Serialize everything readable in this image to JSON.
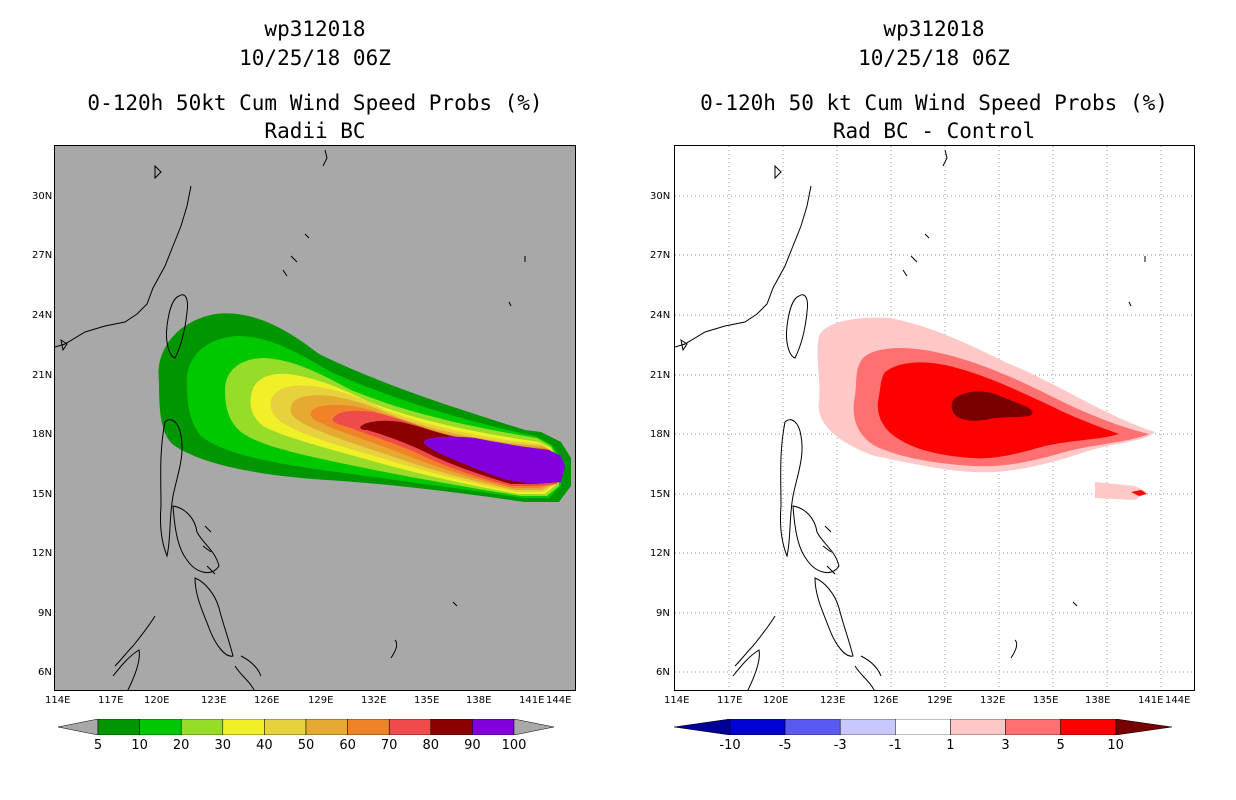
{
  "left": {
    "storm_id": "wp312018",
    "datetime": "10/25/18 06Z",
    "product": "0-120h 50kt Cum Wind Speed Probs (%)",
    "subtitle": "Radii BC",
    "background": "#a8a8a8",
    "colorbar": {
      "labels": [
        "5",
        "10",
        "20",
        "30",
        "40",
        "50",
        "60",
        "70",
        "80",
        "90",
        "100"
      ],
      "colors": [
        "#009600",
        "#00c800",
        "#96dc28",
        "#f0f028",
        "#e6d23c",
        "#e6aa32",
        "#f08228",
        "#f04b4b",
        "#8c0000",
        "#8200dc"
      ],
      "under": "#a8a8a8",
      "over": "#a8a8a8"
    }
  },
  "right": {
    "storm_id": "wp312018",
    "datetime": "10/25/18 06Z",
    "product": "0-120h 50 kt Cum Wind Speed Probs (%)",
    "subtitle": "Rad BC - Control",
    "background": "#ffffff",
    "colorbar": {
      "labels": [
        "-10",
        "-5",
        "-3",
        "-1",
        "1",
        "3",
        "5",
        "10"
      ],
      "colors": [
        "#0000d2",
        "#5a5af0",
        "#c8c8ff",
        "#ffffff",
        "#ffc8c8",
        "#ff7070",
        "#ff0000"
      ],
      "under": "#000096",
      "over": "#780000"
    }
  },
  "axes": {
    "x_ticks": [
      "114E",
      "117E",
      "120E",
      "123E",
      "126E",
      "129E",
      "132E",
      "135E",
      "138E",
      "141E",
      "144E"
    ],
    "y_ticks": [
      "30N",
      "27N",
      "24N",
      "21N",
      "18N",
      "15N",
      "12N",
      "9N",
      "6N"
    ]
  }
}
